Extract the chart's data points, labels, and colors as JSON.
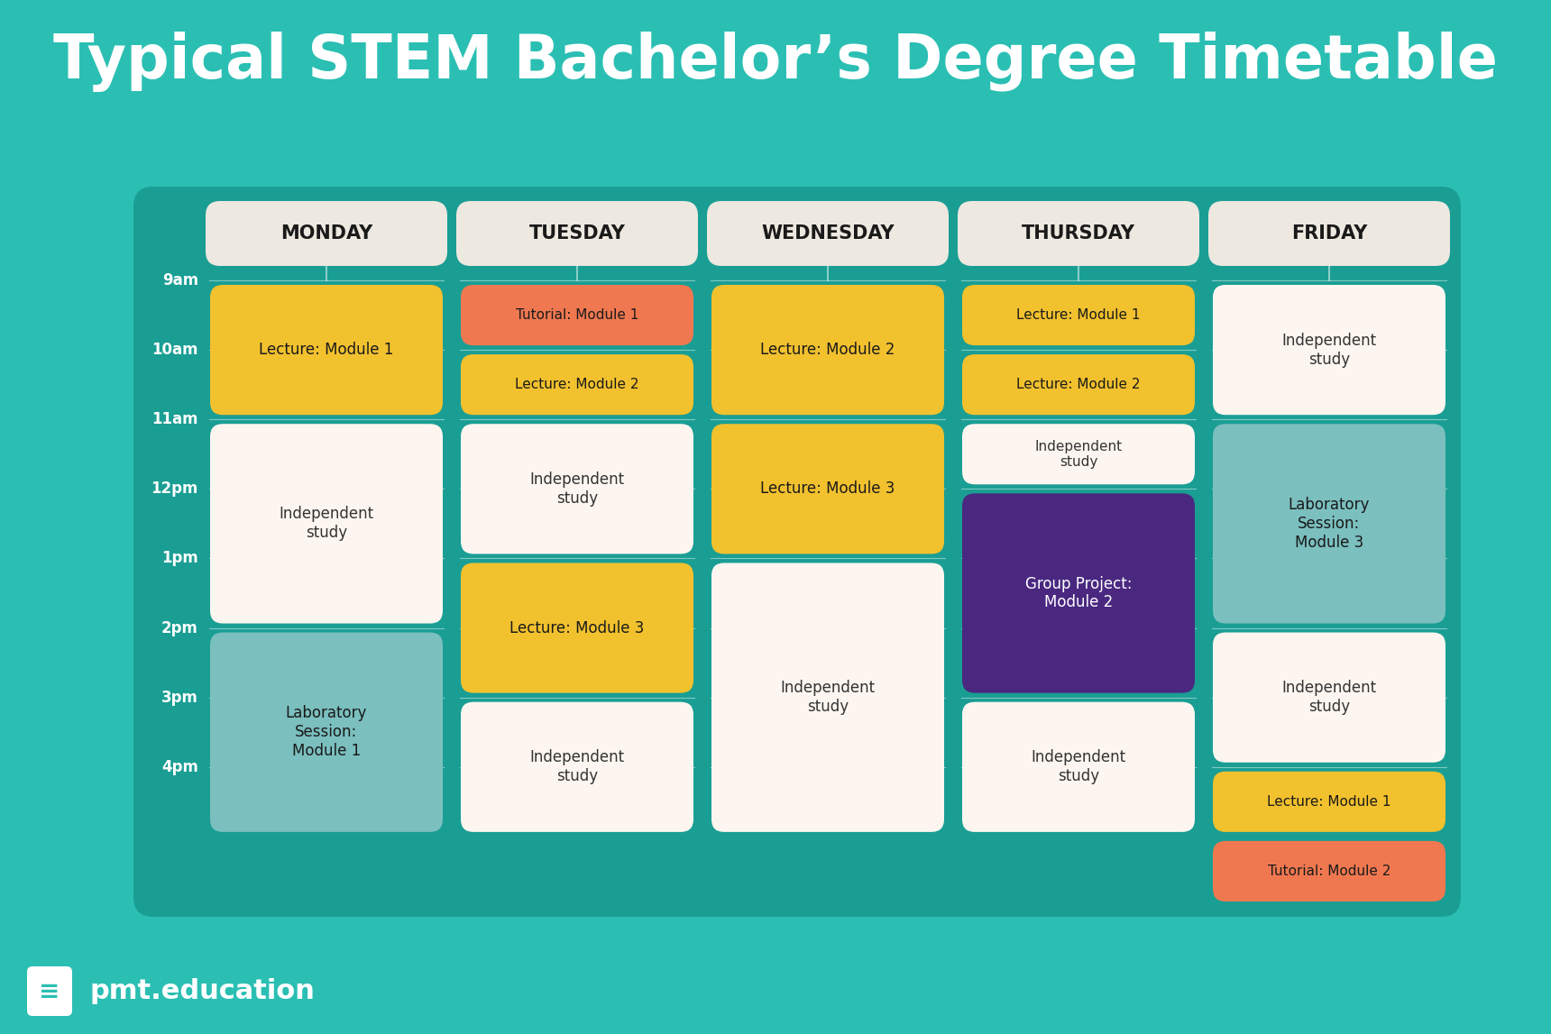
{
  "title": "Typical STEM Bachelor’s Degree Timetable",
  "bg_color": "#2BBFB3",
  "panel_color": "#1A9E94",
  "title_color": "#FFFFFF",
  "days": [
    "MONDAY",
    "TUESDAY",
    "WEDNESDAY",
    "THURSDAY",
    "FRIDAY"
  ],
  "time_labels": [
    "9am",
    "10am",
    "11am",
    "12pm",
    "1pm",
    "2pm",
    "3pm",
    "4pm"
  ],
  "colors": {
    "lecture": "#F2C12E",
    "independent": "#FDF6F0",
    "lab": "#7BBFBF",
    "tutorial": "#F07850",
    "group_project": "#4A2880"
  },
  "text_colors": {
    "lecture": "#1A1A1A",
    "independent": "#333333",
    "lab": "#1A1A1A",
    "tutorial": "#1A1A1A",
    "group_project": "#FFFFFF"
  },
  "header_color": "#EDE8E0",
  "header_text_color": "#1A1A1A",
  "blocks": [
    {
      "day": 0,
      "start": 0,
      "end": 2,
      "label": "Lecture: Module 1",
      "type": "lecture"
    },
    {
      "day": 0,
      "start": 2,
      "end": 5,
      "label": "Independent\nstudy",
      "type": "independent"
    },
    {
      "day": 0,
      "start": 5,
      "end": 8,
      "label": "Laboratory\nSession:\nModule 1",
      "type": "lab"
    },
    {
      "day": 1,
      "start": 0,
      "end": 1,
      "label": "Tutorial: Module 1",
      "type": "tutorial"
    },
    {
      "day": 1,
      "start": 1,
      "end": 2,
      "label": "Lecture: Module 2",
      "type": "lecture"
    },
    {
      "day": 1,
      "start": 2,
      "end": 4,
      "label": "Independent\nstudy",
      "type": "independent"
    },
    {
      "day": 1,
      "start": 4,
      "end": 6,
      "label": "Lecture: Module 3",
      "type": "lecture"
    },
    {
      "day": 1,
      "start": 6,
      "end": 8,
      "label": "Independent\nstudy",
      "type": "independent"
    },
    {
      "day": 2,
      "start": 0,
      "end": 2,
      "label": "Lecture: Module 2",
      "type": "lecture"
    },
    {
      "day": 2,
      "start": 2,
      "end": 4,
      "label": "Lecture: Module 3",
      "type": "lecture"
    },
    {
      "day": 2,
      "start": 4,
      "end": 8,
      "label": "Independent\nstudy",
      "type": "independent"
    },
    {
      "day": 3,
      "start": 0,
      "end": 1,
      "label": "Lecture: Module 1",
      "type": "lecture"
    },
    {
      "day": 3,
      "start": 1,
      "end": 2,
      "label": "Lecture: Module 2",
      "type": "lecture"
    },
    {
      "day": 3,
      "start": 2,
      "end": 3,
      "label": "Independent\nstudy",
      "type": "independent"
    },
    {
      "day": 3,
      "start": 3,
      "end": 6,
      "label": "Group Project:\nModule 2",
      "type": "group_project"
    },
    {
      "day": 3,
      "start": 6,
      "end": 8,
      "label": "Independent\nstudy",
      "type": "independent"
    },
    {
      "day": 4,
      "start": 0,
      "end": 2,
      "label": "Independent\nstudy",
      "type": "independent"
    },
    {
      "day": 4,
      "start": 2,
      "end": 5,
      "label": "Laboratory\nSession:\nModule 3",
      "type": "lab"
    },
    {
      "day": 4,
      "start": 5,
      "end": 7,
      "label": "Independent\nstudy",
      "type": "independent"
    },
    {
      "day": 4,
      "start": 7,
      "end": 8,
      "label": "Lecture: Module 1",
      "type": "lecture"
    },
    {
      "day": 4,
      "start": 8,
      "end": 9,
      "label": "Tutorial: Module 2",
      "type": "tutorial"
    }
  ],
  "footer_text": "pmt.education"
}
